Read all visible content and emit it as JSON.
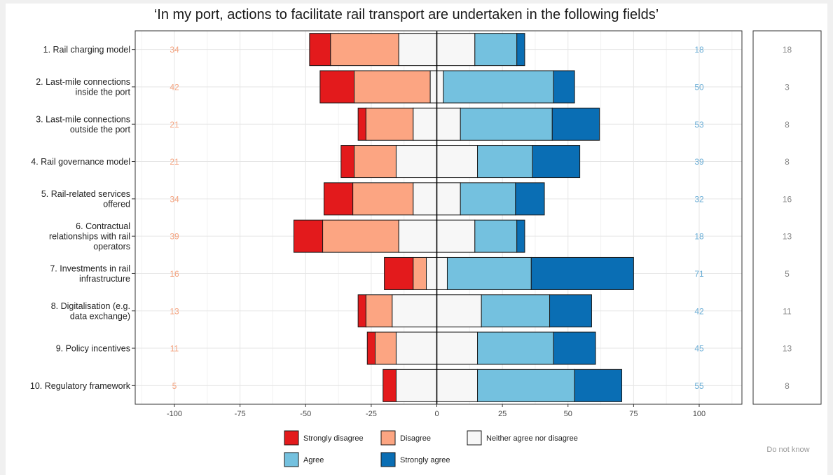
{
  "chart_data": {
    "type": "bar",
    "subtype": "diverging-stacked",
    "title": "‘In my port, actions to facilitate rail transport are undertaken in the following fields’",
    "xlim": [
      -112,
      116
    ],
    "x_ticks": [
      -100,
      -75,
      -50,
      -25,
      0,
      25,
      50,
      75,
      100
    ],
    "x_tick_labels": [
      "-100",
      "-75",
      "-50",
      "-25",
      "0",
      "25",
      "50",
      "75",
      "100"
    ],
    "grid": true,
    "legend_position": "bottom",
    "categories": [
      "1. Rail charging model",
      "2. Last-mile connections inside the port",
      "3. Last-mile connections outside the port",
      "4. Rail governance model",
      "5. Rail-related services offered",
      "6. Contractual relationships with rail operators",
      "7. Investments in rail infrastructure",
      "8. Digitalisation (e.g. data exchange)",
      "9. Policy incentives",
      "10. Regulatory framework"
    ],
    "category_label_lines": [
      [
        "1. Rail charging model"
      ],
      [
        "2. Last-mile connections",
        "inside the port"
      ],
      [
        "3. Last-mile connections",
        "outside the port"
      ],
      [
        "4. Rail governance model"
      ],
      [
        "5. Rail-related services",
        "offered"
      ],
      [
        "6. Contractual",
        "relationships with rail",
        "operators"
      ],
      [
        "7. Investments in rail",
        "infrastructure"
      ],
      [
        "8. Digitalisation (e.g.",
        "data exchange)"
      ],
      [
        "9. Policy incentives"
      ],
      [
        "10. Regulatory framework"
      ]
    ],
    "series": [
      {
        "name": "Strongly disagree",
        "color": "#e31a1c",
        "values": [
          8,
          13,
          3,
          5,
          11,
          11,
          11,
          3,
          3,
          5
        ]
      },
      {
        "name": "Disagree",
        "color": "#fca582",
        "values": [
          26,
          29,
          18,
          16,
          23,
          29,
          5,
          10,
          8,
          0
        ]
      },
      {
        "name": "Neither agree nor disagree",
        "color": "#f7f7f7",
        "values": [
          29,
          5,
          18,
          31,
          18,
          29,
          8,
          34,
          31,
          31
        ]
      },
      {
        "name": "Agree",
        "color": "#74c1df",
        "values": [
          16,
          42,
          35,
          21,
          21,
          16,
          32,
          26,
          29,
          37
        ]
      },
      {
        "name": "Strongly agree",
        "color": "#0a6eb4",
        "values": [
          3,
          8,
          18,
          18,
          11,
          3,
          39,
          16,
          16,
          18
        ]
      }
    ],
    "disagree_totals": [
      "34",
      "42",
      "21",
      "21",
      "34",
      "39",
      "16",
      "13",
      "11",
      "5"
    ],
    "agree_totals": [
      "18",
      "50",
      "53",
      "39",
      "32",
      "18",
      "71",
      "42",
      "45",
      "55"
    ],
    "do_not_know": [
      "18",
      "3",
      "8",
      "8",
      "16",
      "13",
      "5",
      "11",
      "13",
      "8"
    ],
    "do_not_know_label": "Do not know"
  },
  "colors": {
    "disagree_total": "#f4a582",
    "agree_total": "#6baed6",
    "dnk_text": "#888888"
  }
}
